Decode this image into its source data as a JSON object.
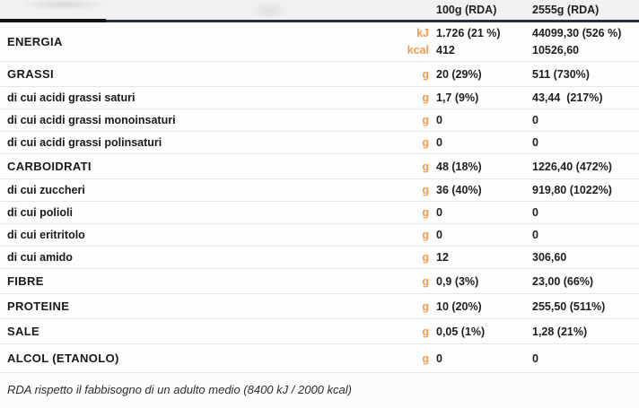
{
  "table": {
    "header": {
      "col_100g": "100g (RDA)",
      "col_2555g": "2555g (RDA)"
    },
    "rows": [
      {
        "label": "ENERGIA",
        "category": true,
        "lines": [
          {
            "unit": "kJ",
            "v1": "1.726 (21 %)",
            "v2": "44099,30 (526 %)"
          },
          {
            "unit": "kcal",
            "v1": "412",
            "v2": "10526,60"
          }
        ]
      },
      {
        "label": "GRASSI",
        "category": true,
        "lines": [
          {
            "unit": "g",
            "v1": "20 (29%)",
            "v2": "511 (730%)"
          }
        ]
      },
      {
        "label": "di cui acidi grassi saturi",
        "category": false,
        "lines": [
          {
            "unit": "g",
            "v1": "1,7 (9%)",
            "v2": "43,44  (217%)"
          }
        ]
      },
      {
        "label": "di cui acidi grassi monoinsaturi",
        "category": false,
        "lines": [
          {
            "unit": "g",
            "v1": "0",
            "v2": "0"
          }
        ]
      },
      {
        "label": "di cui acidi grassi polinsaturi",
        "category": false,
        "lines": [
          {
            "unit": "g",
            "v1": "0",
            "v2": "0"
          }
        ]
      },
      {
        "label": "CARBOIDRATI",
        "category": true,
        "lines": [
          {
            "unit": "g",
            "v1": "48 (18%)",
            "v2": "1226,40 (472%)"
          }
        ]
      },
      {
        "label": "di cui zuccheri",
        "category": false,
        "lines": [
          {
            "unit": "g",
            "v1": "36 (40%)",
            "v2": "919,80 (1022%)"
          }
        ]
      },
      {
        "label": "di cui polioli",
        "category": false,
        "lines": [
          {
            "unit": "g",
            "v1": "0",
            "v2": "0"
          }
        ]
      },
      {
        "label": "di cui eritritolo",
        "category": false,
        "lines": [
          {
            "unit": "g",
            "v1": "0",
            "v2": "0"
          }
        ]
      },
      {
        "label": "di cui amido",
        "category": false,
        "lines": [
          {
            "unit": "g",
            "v1": "12",
            "v2": "306,60"
          }
        ]
      },
      {
        "label": "FIBRE",
        "category": true,
        "lines": [
          {
            "unit": "g",
            "v1": "0,9 (3%)",
            "v2": "23,00 (66%)"
          }
        ]
      },
      {
        "label": "PROTEINE",
        "category": true,
        "lines": [
          {
            "unit": "g",
            "v1": "10 (20%)",
            "v2": "255,50 (511%)"
          }
        ]
      },
      {
        "label": "SALE",
        "category": true,
        "lines": [
          {
            "unit": "g",
            "v1": "0,05 (1%)",
            "v2": "1,28 (21%)"
          }
        ]
      },
      {
        "label": "ALCOL (ETANOLO)",
        "category": true,
        "lines": [
          {
            "unit": "g",
            "v1": "0",
            "v2": "0"
          }
        ]
      }
    ],
    "footnote": "RDA rispetto il fabbisogno di un adulto medio (8400 kJ / 2000 kcal)"
  },
  "colors": {
    "accent": "#f89b52",
    "divider": "#27303c",
    "row_border": "#e9e9eb"
  }
}
